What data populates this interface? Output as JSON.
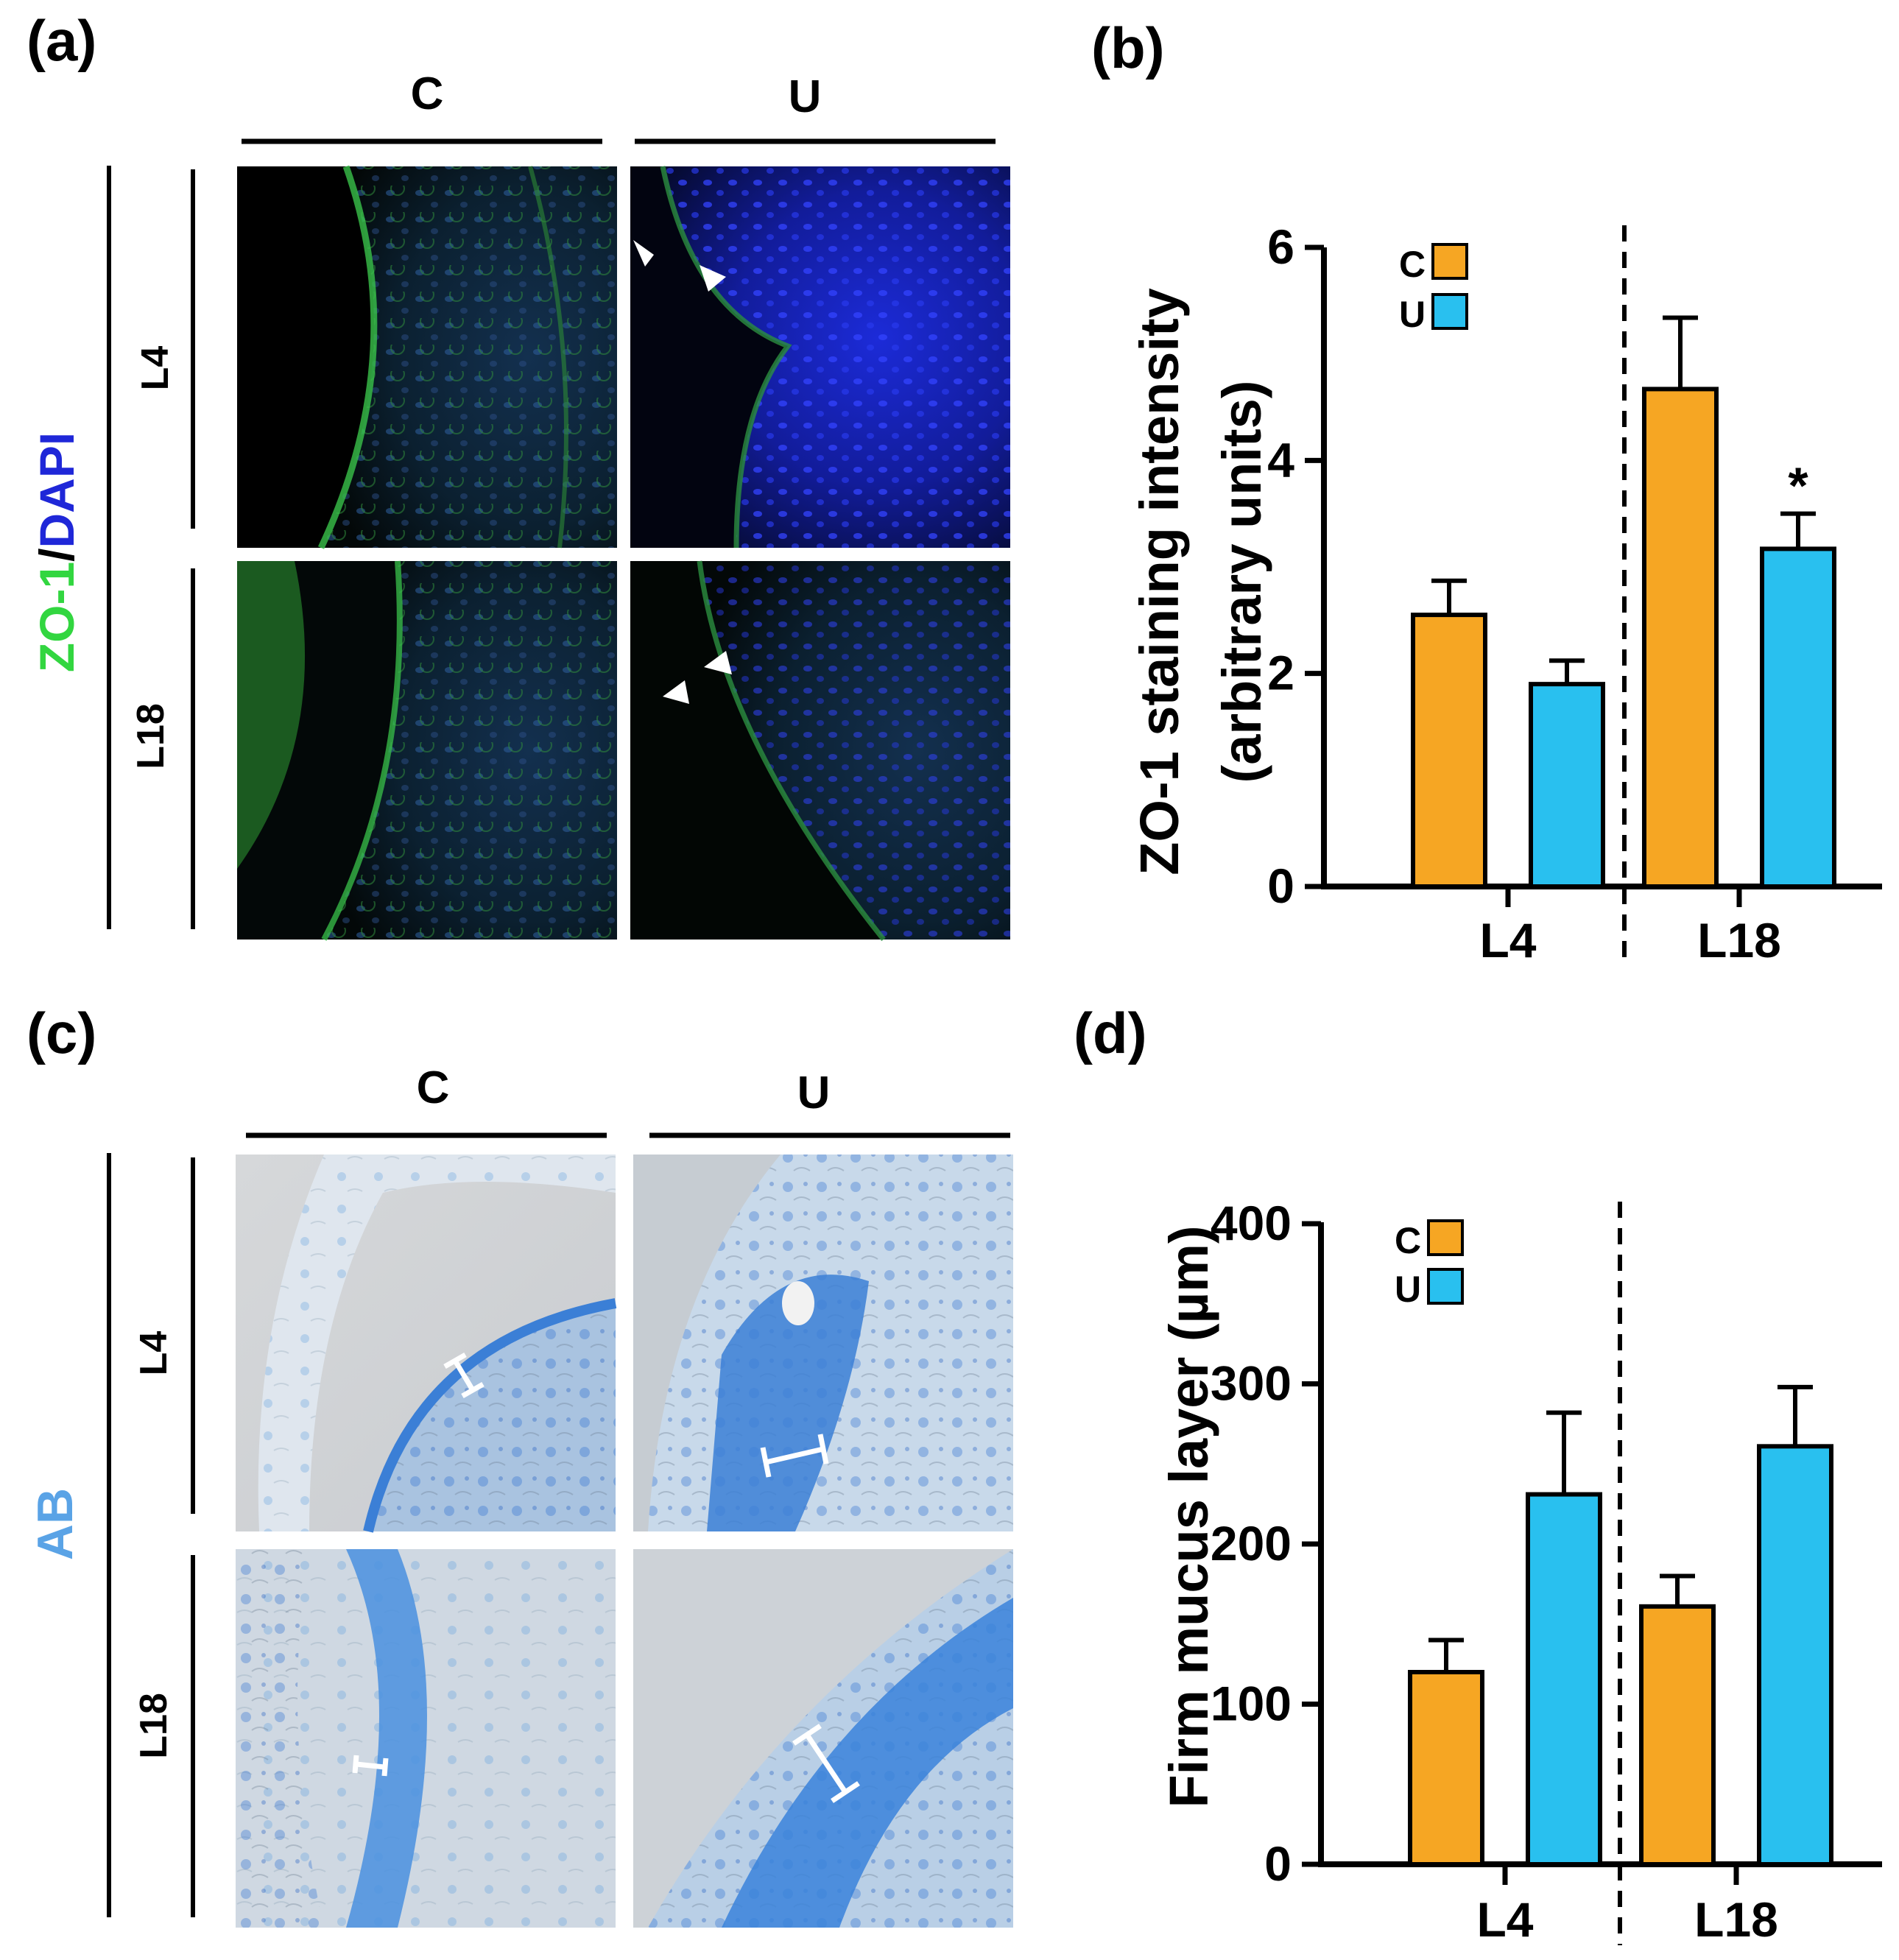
{
  "colors": {
    "C": "#f6a623",
    "U": "#29c0ef",
    "zo1_green": "#32d640",
    "dapi_blue": "#1f27d8",
    "ab_blue": "#5aa3e6"
  },
  "panel_a": {
    "letter": "(a)",
    "col_headers": [
      "C",
      "U"
    ],
    "row_headers": [
      "L4",
      "L18"
    ],
    "stain_label": {
      "part1": "ZO-1",
      "separator": "/",
      "part2": "DAPI"
    }
  },
  "panel_c": {
    "letter": "(c)",
    "col_headers": [
      "C",
      "U"
    ],
    "row_headers": [
      "L4",
      "L18"
    ],
    "stain_label": "AB"
  },
  "panel_b": {
    "letter": "(b)"
  },
  "panel_d": {
    "letter": "(d)"
  },
  "chart_data": [
    {
      "id": "b",
      "type": "bar",
      "title": "",
      "ylabel_line1": "ZO-1 staining intensity",
      "ylabel_line2": "(arbitrary units)",
      "ylim": [
        0,
        6
      ],
      "yticks": [
        0,
        2,
        4,
        6
      ],
      "categories": [
        "L4",
        "L18"
      ],
      "series": [
        {
          "name": "C",
          "values": [
            2.55,
            4.67
          ],
          "errors": [
            0.32,
            0.67
          ]
        },
        {
          "name": "U",
          "values": [
            1.9,
            3.17
          ],
          "errors": [
            0.22,
            0.33
          ]
        }
      ],
      "annotations": [
        {
          "category": "L18",
          "series": "U",
          "text": "*"
        }
      ],
      "legend": "top-left",
      "divider": "dashed line between L4 and L18"
    },
    {
      "id": "d",
      "type": "bar",
      "title": "",
      "ylabel_line1": "Firm mucus layer (µm)",
      "ylabel_line2": "",
      "ylim": [
        0,
        400
      ],
      "yticks": [
        0,
        100,
        200,
        300,
        400
      ],
      "categories": [
        "L4",
        "L18"
      ],
      "series": [
        {
          "name": "C",
          "values": [
            120,
            161
          ],
          "errors": [
            20,
            19
          ]
        },
        {
          "name": "U",
          "values": [
            231,
            261
          ],
          "errors": [
            51,
            37
          ]
        }
      ],
      "annotations": [],
      "legend": "top-left",
      "divider": "dashed line between L4 and L18"
    }
  ]
}
